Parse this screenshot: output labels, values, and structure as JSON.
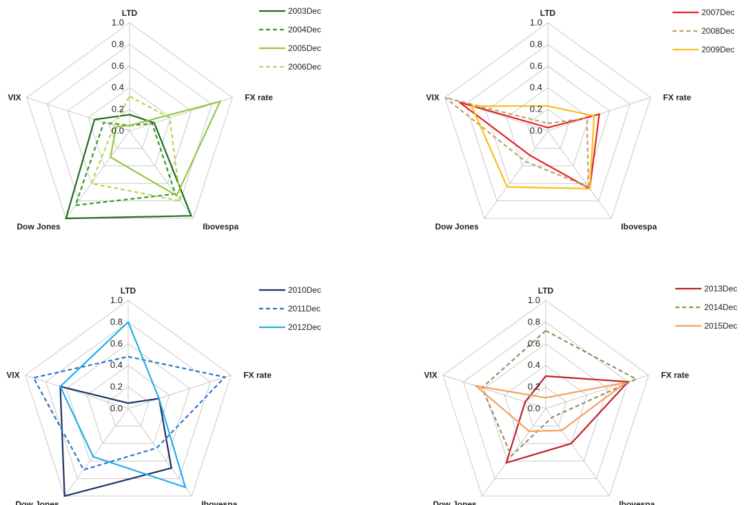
{
  "chart_data": [
    {
      "type": "radar",
      "axes": [
        "LTD",
        "FX rate",
        "Ibovespa",
        "Dow Jones",
        "VIX"
      ],
      "rlim": [
        0,
        1
      ],
      "ticks": [
        "0.0",
        "0.2",
        "0.4",
        "0.6",
        "0.8",
        "1.0"
      ],
      "grid": true,
      "legend": "top-right",
      "series": [
        {
          "name": "2003Dec",
          "color": "#1e6b1e",
          "dash": "solid",
          "values": [
            0.15,
            0.24,
            0.97,
            1.0,
            0.34
          ]
        },
        {
          "name": "2004Dec",
          "color": "#2e9a2e",
          "dash": "dashed",
          "values": [
            0.05,
            0.22,
            0.72,
            0.85,
            0.25
          ]
        },
        {
          "name": "2005Dec",
          "color": "#92c83e",
          "dash": "solid",
          "values": [
            0.05,
            0.88,
            0.74,
            0.3,
            0.13
          ]
        },
        {
          "name": "2006Dec",
          "color": "#b6d64a",
          "dash": "dashed",
          "values": [
            0.32,
            0.39,
            0.8,
            0.6,
            0.15
          ]
        }
      ]
    },
    {
      "type": "radar",
      "axes": [
        "LTD",
        "FX rate",
        "Ibovespa",
        "Dow Jones",
        "VIX"
      ],
      "rlim": [
        0,
        1
      ],
      "ticks": [
        "0.0",
        "0.2",
        "0.4",
        "0.6",
        "0.8",
        "1.0"
      ],
      "grid": true,
      "legend": "top-right",
      "series": [
        {
          "name": "2007Dec",
          "color": "#e8201c",
          "dash": "solid",
          "values": [
            0.03,
            0.5,
            0.66,
            0.28,
            0.86
          ]
        },
        {
          "name": "2008Dec",
          "color": "#c4a06a",
          "dash": "dashed",
          "values": [
            0.07,
            0.38,
            0.64,
            0.35,
            1.0
          ]
        },
        {
          "name": "2009Dec",
          "color": "#f6bf1a",
          "dash": "solid",
          "values": [
            0.23,
            0.45,
            0.66,
            0.64,
            0.74
          ]
        }
      ]
    },
    {
      "type": "radar",
      "axes": [
        "LTD",
        "FX rate",
        "Ibovespa",
        "Dow Jones",
        "VIX"
      ],
      "rlim": [
        0,
        1
      ],
      "ticks": [
        "0.0",
        "0.2",
        "0.4",
        "0.6",
        "0.8",
        "1.0"
      ],
      "grid": true,
      "legend": "top-right",
      "series": [
        {
          "name": "2010Dec",
          "color": "#1c2f66",
          "dash": "solid",
          "values": [
            0.05,
            0.3,
            0.68,
            1.0,
            0.66
          ]
        },
        {
          "name": "2011Dec",
          "color": "#2876c4",
          "dash": "dashed",
          "values": [
            0.48,
            0.94,
            0.45,
            0.7,
            0.92
          ]
        },
        {
          "name": "2012Dec",
          "color": "#22aee6",
          "dash": "solid",
          "values": [
            0.8,
            0.3,
            0.9,
            0.55,
            0.66
          ]
        }
      ]
    },
    {
      "type": "radar",
      "axes": [
        "LTD",
        "FX rate",
        "Ibovespa",
        "Dow Jones",
        "VIX"
      ],
      "rlim": [
        0,
        1
      ],
      "ticks": [
        "0.0",
        "0.2",
        "0.4",
        "0.6",
        "0.8",
        "1.0"
      ],
      "grid": true,
      "legend": "top-right",
      "series": [
        {
          "name": "2013Dec",
          "color": "#c01f25",
          "dash": "solid",
          "values": [
            0.3,
            0.8,
            0.4,
            0.62,
            0.2
          ]
        },
        {
          "name": "2014Dec",
          "color": "#9a8c5a",
          "dash": "dashed",
          "values": [
            0.72,
            0.88,
            0.1,
            0.54,
            0.62
          ]
        },
        {
          "name": "2015Dec",
          "color": "#f3a15c",
          "dash": "solid",
          "values": [
            0.1,
            0.78,
            0.25,
            0.26,
            0.68
          ]
        }
      ]
    }
  ]
}
